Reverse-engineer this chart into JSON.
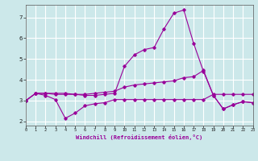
{
  "xlabel": "Windchill (Refroidissement éolien,°C)",
  "background_color": "#cce8ea",
  "grid_color": "#ffffff",
  "line_color": "#990099",
  "xlim": [
    0,
    23
  ],
  "ylim": [
    1.8,
    7.6
  ],
  "yticks": [
    2,
    3,
    4,
    5,
    6,
    7
  ],
  "xticks": [
    0,
    1,
    2,
    3,
    4,
    5,
    6,
    7,
    8,
    9,
    10,
    11,
    12,
    13,
    14,
    15,
    16,
    17,
    18,
    19,
    20,
    21,
    22,
    23
  ],
  "lines": [
    [
      3.0,
      3.35,
      3.25,
      3.05,
      2.15,
      2.4,
      2.75,
      2.85,
      2.9,
      3.05,
      3.05,
      3.05,
      3.05,
      3.05,
      3.05,
      3.05,
      3.05,
      3.05,
      3.05,
      3.3,
      3.3,
      3.3,
      3.3,
      3.3
    ],
    [
      3.0,
      3.35,
      3.35,
      3.3,
      3.3,
      3.3,
      3.3,
      3.35,
      3.4,
      3.45,
      3.65,
      3.75,
      3.8,
      3.85,
      3.9,
      3.95,
      4.1,
      4.15,
      4.45,
      3.25,
      2.6,
      2.8,
      2.95,
      2.9
    ],
    [
      3.0,
      3.35,
      3.35,
      3.35,
      3.35,
      3.3,
      3.25,
      3.25,
      3.3,
      3.35,
      4.65,
      5.2,
      5.45,
      5.55,
      6.45,
      7.2,
      7.35,
      5.75,
      4.4,
      3.25,
      2.6,
      2.8,
      2.95,
      2.9
    ]
  ]
}
